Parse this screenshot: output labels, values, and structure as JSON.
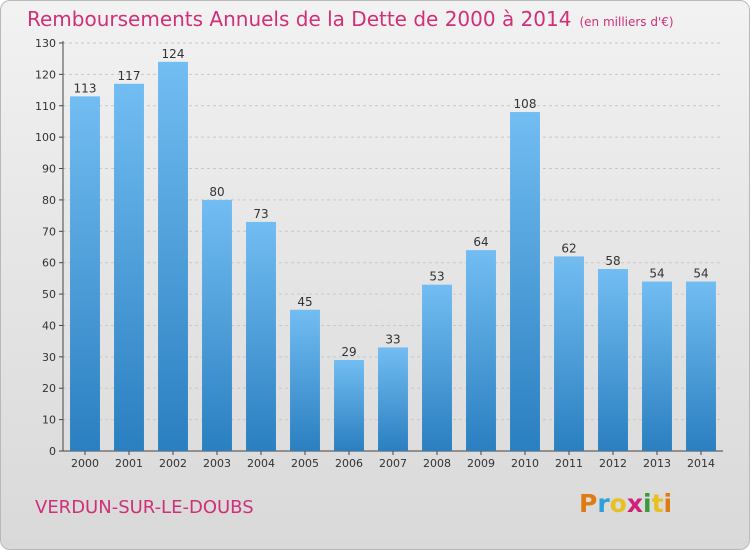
{
  "title": "Remboursements Annuels de la Dette de 2000 à 2014",
  "subtitle": "(en milliers d'€)",
  "place": "VERDUN-SUR-LE-DOUBS",
  "brand": {
    "letters": [
      "P",
      "r",
      "o",
      "x",
      "i",
      "t",
      "i"
    ],
    "colors": [
      "#e07a12",
      "#2e9fd8",
      "#e8c020",
      "#d0207a",
      "#3a9a3a",
      "#e8c020",
      "#e07a12"
    ]
  },
  "colors": {
    "bar_light": "#72bdf2",
    "bar_dark": "#2a7fc0",
    "title": "#d03078"
  },
  "chart_data": {
    "type": "bar",
    "categories": [
      "2000",
      "2001",
      "2002",
      "2003",
      "2004",
      "2005",
      "2006",
      "2007",
      "2008",
      "2009",
      "2010",
      "2011",
      "2012",
      "2013",
      "2014"
    ],
    "values": [
      113,
      117,
      124,
      80,
      73,
      45,
      29,
      33,
      53,
      64,
      108,
      62,
      58,
      54,
      54
    ],
    "ylim": [
      0,
      130
    ],
    "yticks": [
      0,
      10,
      20,
      30,
      40,
      50,
      60,
      70,
      80,
      90,
      100,
      110,
      120,
      130
    ],
    "grid": true
  }
}
